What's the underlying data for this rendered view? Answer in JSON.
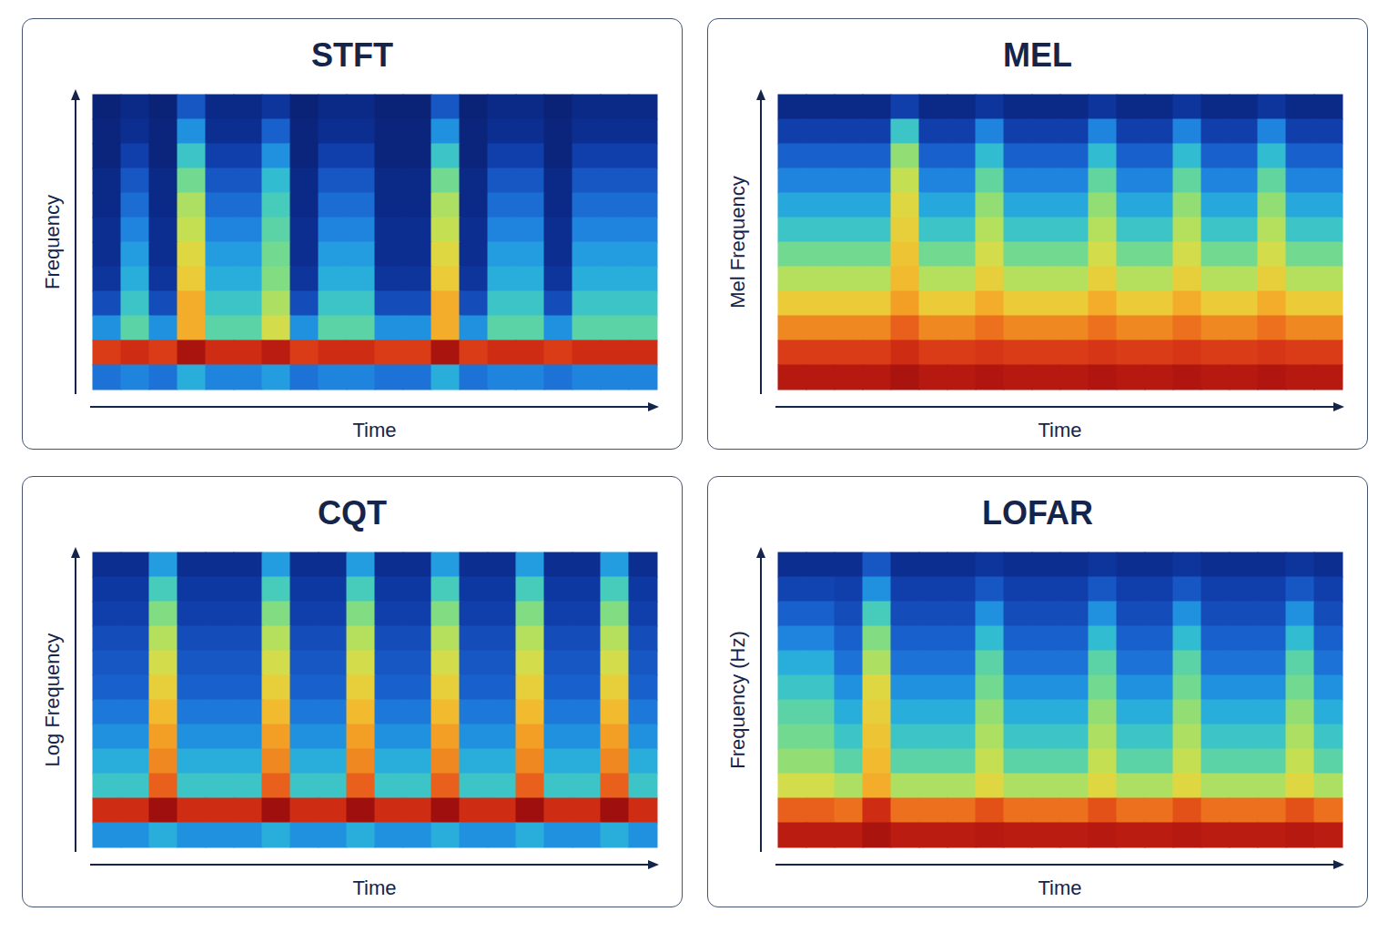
{
  "chart_data": [
    {
      "type": "heatmap",
      "title": "STFT",
      "xlabel": "Time",
      "ylabel": "Frequency",
      "tick_labels": false,
      "zlim": [
        0,
        100
      ],
      "cells": [
        [
          5,
          8,
          5,
          20,
          8,
          8,
          12,
          5,
          8,
          8,
          5,
          5,
          20,
          5,
          8,
          8,
          5,
          8,
          8,
          8
        ],
        [
          6,
          10,
          6,
          30,
          10,
          10,
          22,
          6,
          10,
          10,
          6,
          6,
          30,
          6,
          10,
          10,
          6,
          10,
          10,
          10
        ],
        [
          6,
          15,
          6,
          40,
          15,
          15,
          30,
          6,
          15,
          15,
          6,
          6,
          40,
          6,
          15,
          15,
          6,
          15,
          15,
          15
        ],
        [
          8,
          20,
          8,
          48,
          20,
          20,
          38,
          8,
          20,
          20,
          8,
          8,
          48,
          8,
          20,
          20,
          8,
          20,
          20,
          20
        ],
        [
          8,
          24,
          8,
          55,
          24,
          24,
          42,
          8,
          24,
          24,
          8,
          8,
          55,
          8,
          24,
          24,
          8,
          24,
          24,
          24
        ],
        [
          10,
          28,
          10,
          58,
          28,
          28,
          45,
          10,
          28,
          28,
          10,
          10,
          58,
          10,
          28,
          28,
          10,
          28,
          28,
          28
        ],
        [
          10,
          32,
          10,
          62,
          32,
          32,
          48,
          10,
          32,
          32,
          10,
          10,
          62,
          10,
          32,
          32,
          10,
          32,
          32,
          32
        ],
        [
          12,
          35,
          12,
          65,
          35,
          35,
          50,
          12,
          35,
          35,
          12,
          12,
          65,
          12,
          35,
          35,
          12,
          35,
          35,
          35
        ],
        [
          18,
          40,
          18,
          70,
          40,
          40,
          55,
          18,
          40,
          40,
          18,
          18,
          70,
          18,
          40,
          40,
          18,
          40,
          40,
          40
        ],
        [
          30,
          45,
          30,
          70,
          45,
          45,
          60,
          30,
          45,
          45,
          30,
          30,
          70,
          30,
          45,
          45,
          30,
          45,
          45,
          45
        ],
        [
          85,
          88,
          85,
          95,
          88,
          88,
          92,
          85,
          88,
          88,
          85,
          85,
          95,
          85,
          88,
          88,
          85,
          88,
          88,
          88
        ],
        [
          25,
          28,
          25,
          35,
          28,
          28,
          32,
          25,
          28,
          28,
          25,
          25,
          35,
          25,
          28,
          28,
          25,
          28,
          28,
          28
        ]
      ]
    },
    {
      "type": "heatmap",
      "title": "MEL",
      "xlabel": "Time",
      "ylabel": "Mel Frequency",
      "tick_labels": false,
      "zlim": [
        0,
        100
      ],
      "cells": [
        [
          8,
          8,
          8,
          8,
          15,
          8,
          8,
          12,
          8,
          8,
          8,
          12,
          8,
          8,
          12,
          8,
          8,
          12,
          8,
          8
        ],
        [
          15,
          15,
          15,
          15,
          40,
          15,
          15,
          28,
          15,
          15,
          15,
          28,
          15,
          15,
          28,
          15,
          15,
          28,
          15,
          15
        ],
        [
          22,
          22,
          22,
          22,
          52,
          22,
          22,
          38,
          22,
          22,
          22,
          38,
          22,
          22,
          38,
          22,
          22,
          38,
          22,
          22
        ],
        [
          28,
          28,
          28,
          28,
          58,
          28,
          28,
          46,
          28,
          28,
          28,
          46,
          28,
          28,
          46,
          28,
          28,
          46,
          28,
          28
        ],
        [
          34,
          34,
          34,
          34,
          62,
          34,
          34,
          52,
          34,
          34,
          34,
          52,
          34,
          34,
          52,
          34,
          34,
          52,
          34,
          34
        ],
        [
          40,
          40,
          40,
          40,
          64,
          40,
          40,
          56,
          40,
          40,
          40,
          56,
          40,
          40,
          56,
          40,
          40,
          56,
          40,
          40
        ],
        [
          48,
          48,
          48,
          48,
          66,
          48,
          48,
          60,
          48,
          48,
          48,
          60,
          48,
          48,
          60,
          48,
          48,
          60,
          48,
          48
        ],
        [
          56,
          56,
          56,
          56,
          68,
          56,
          56,
          64,
          56,
          56,
          56,
          64,
          56,
          56,
          64,
          56,
          56,
          64,
          56,
          56
        ],
        [
          65,
          65,
          65,
          65,
          72,
          65,
          65,
          70,
          65,
          65,
          65,
          70,
          65,
          65,
          70,
          65,
          65,
          70,
          65,
          65
        ],
        [
          75,
          75,
          75,
          75,
          80,
          75,
          75,
          78,
          75,
          75,
          75,
          78,
          75,
          75,
          78,
          75,
          75,
          78,
          75,
          75
        ],
        [
          85,
          85,
          85,
          85,
          88,
          85,
          85,
          86,
          85,
          85,
          85,
          86,
          85,
          85,
          86,
          85,
          85,
          86,
          85,
          85
        ],
        [
          93,
          93,
          93,
          93,
          95,
          93,
          93,
          94,
          93,
          93,
          93,
          94,
          93,
          93,
          94,
          93,
          93,
          94,
          93,
          93
        ]
      ]
    },
    {
      "type": "heatmap",
      "title": "CQT",
      "xlabel": "Time",
      "ylabel": "Log Frequency",
      "tick_labels": false,
      "zlim": [
        0,
        100
      ],
      "cells": [
        [
          10,
          10,
          32,
          10,
          10,
          10,
          32,
          10,
          10,
          32,
          10,
          10,
          32,
          10,
          10,
          32,
          10,
          10,
          32,
          10
        ],
        [
          13,
          13,
          42,
          13,
          13,
          13,
          42,
          13,
          13,
          42,
          13,
          13,
          42,
          13,
          13,
          42,
          13,
          13,
          42,
          13
        ],
        [
          15,
          15,
          50,
          15,
          15,
          15,
          50,
          15,
          15,
          50,
          15,
          15,
          50,
          15,
          15,
          50,
          15,
          15,
          50,
          15
        ],
        [
          18,
          18,
          56,
          18,
          18,
          18,
          56,
          18,
          18,
          56,
          18,
          18,
          56,
          18,
          18,
          56,
          18,
          18,
          56,
          18
        ],
        [
          20,
          20,
          60,
          20,
          20,
          20,
          60,
          20,
          20,
          60,
          20,
          20,
          60,
          20,
          20,
          60,
          20,
          20,
          60,
          20
        ],
        [
          22,
          22,
          64,
          22,
          22,
          22,
          64,
          22,
          22,
          64,
          22,
          22,
          64,
          22,
          22,
          64,
          22,
          22,
          64,
          22
        ],
        [
          26,
          26,
          68,
          26,
          26,
          26,
          68,
          26,
          26,
          68,
          26,
          26,
          68,
          26,
          26,
          68,
          26,
          26,
          68,
          26
        ],
        [
          30,
          30,
          72,
          30,
          30,
          30,
          72,
          30,
          30,
          72,
          30,
          30,
          72,
          30,
          30,
          72,
          30,
          30,
          72,
          30
        ],
        [
          35,
          35,
          75,
          35,
          35,
          35,
          75,
          35,
          35,
          75,
          35,
          35,
          75,
          35,
          35,
          75,
          35,
          35,
          75,
          35
        ],
        [
          40,
          40,
          80,
          40,
          40,
          40,
          80,
          40,
          40,
          80,
          40,
          40,
          80,
          40,
          40,
          80,
          40,
          40,
          80,
          40
        ],
        [
          88,
          88,
          97,
          88,
          88,
          88,
          97,
          88,
          88,
          97,
          88,
          88,
          97,
          88,
          88,
          97,
          88,
          88,
          97,
          88
        ],
        [
          30,
          30,
          35,
          30,
          30,
          30,
          35,
          30,
          30,
          35,
          30,
          30,
          35,
          30,
          30,
          35,
          30,
          30,
          35,
          30
        ]
      ]
    },
    {
      "type": "heatmap",
      "title": "LOFAR",
      "xlabel": "Time",
      "ylabel": "Frequency (Hz)",
      "tick_labels": false,
      "zlim": [
        0,
        100
      ],
      "cells": [
        [
          10,
          10,
          10,
          20,
          10,
          10,
          10,
          12,
          10,
          10,
          10,
          12,
          10,
          10,
          12,
          10,
          10,
          10,
          12,
          10
        ],
        [
          16,
          16,
          15,
          30,
          15,
          15,
          15,
          20,
          15,
          15,
          15,
          20,
          15,
          15,
          20,
          15,
          15,
          15,
          20,
          15
        ],
        [
          22,
          22,
          18,
          42,
          18,
          18,
          18,
          30,
          18,
          18,
          18,
          30,
          18,
          18,
          30,
          18,
          18,
          18,
          30,
          18
        ],
        [
          28,
          28,
          22,
          50,
          22,
          22,
          22,
          38,
          22,
          22,
          22,
          38,
          22,
          22,
          38,
          22,
          22,
          22,
          38,
          22
        ],
        [
          35,
          35,
          25,
          55,
          25,
          25,
          25,
          45,
          25,
          25,
          25,
          45,
          25,
          25,
          45,
          25,
          25,
          25,
          45,
          25
        ],
        [
          40,
          40,
          30,
          62,
          30,
          30,
          30,
          48,
          30,
          30,
          30,
          48,
          30,
          30,
          48,
          30,
          30,
          30,
          48,
          30
        ],
        [
          45,
          45,
          35,
          64,
          35,
          35,
          35,
          52,
          35,
          35,
          35,
          52,
          35,
          35,
          52,
          35,
          35,
          35,
          52,
          35
        ],
        [
          48,
          48,
          40,
          66,
          40,
          40,
          40,
          55,
          40,
          40,
          40,
          55,
          40,
          40,
          55,
          40,
          40,
          40,
          55,
          40
        ],
        [
          52,
          52,
          45,
          68,
          45,
          45,
          45,
          58,
          45,
          45,
          45,
          58,
          45,
          45,
          58,
          45,
          45,
          45,
          58,
          45
        ],
        [
          60,
          60,
          55,
          70,
          55,
          55,
          55,
          62,
          55,
          55,
          55,
          62,
          55,
          55,
          62,
          55,
          55,
          55,
          62,
          55
        ],
        [
          80,
          80,
          78,
          88,
          78,
          78,
          78,
          82,
          78,
          78,
          78,
          82,
          78,
          78,
          82,
          78,
          78,
          78,
          82,
          78
        ],
        [
          92,
          92,
          92,
          95,
          92,
          92,
          92,
          93,
          92,
          92,
          92,
          93,
          92,
          92,
          93,
          92,
          92,
          92,
          93,
          92
        ]
      ]
    }
  ]
}
